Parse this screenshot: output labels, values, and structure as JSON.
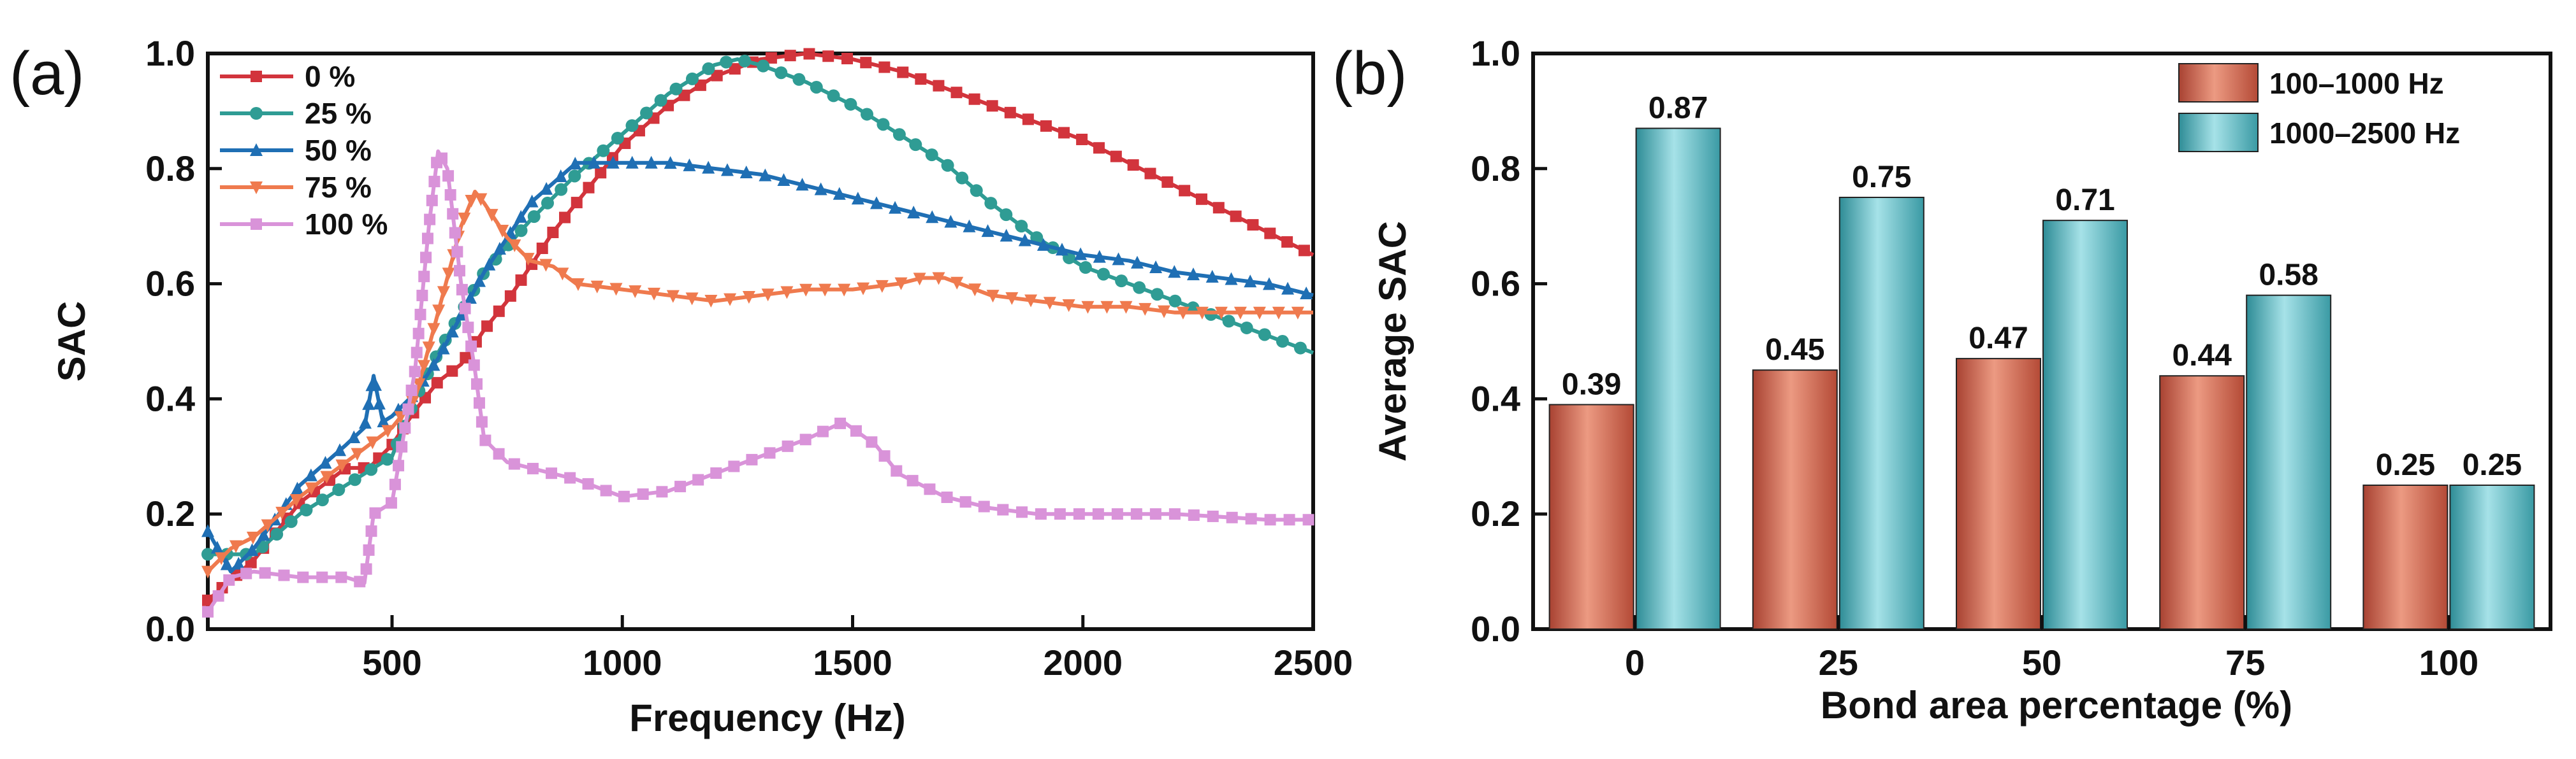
{
  "chart_data": [
    {
      "panel_label": "(a)",
      "type": "line",
      "xlabel": "Frequency (Hz)",
      "ylabel": "SAC",
      "xlim": [
        100,
        2500
      ],
      "ylim": [
        0,
        1.0
      ],
      "xticks": [
        "500",
        "1000",
        "1500",
        "2000",
        "2500"
      ],
      "yticks": [
        "0.0",
        "0.2",
        "0.4",
        "0.6",
        "0.8",
        "1.0"
      ],
      "legend_position": "top-left",
      "series": [
        {
          "name": "0 %",
          "color": "#d2343c",
          "marker": "square",
          "points": [
            [
              100,
              0.05
            ],
            [
              200,
              0.12
            ],
            [
              300,
              0.22
            ],
            [
              400,
              0.28
            ],
            [
              450,
              0.28
            ],
            [
              500,
              0.32
            ],
            [
              550,
              0.38
            ],
            [
              600,
              0.43
            ],
            [
              650,
              0.46
            ],
            [
              700,
              0.52
            ],
            [
              750,
              0.57
            ],
            [
              800,
              0.63
            ],
            [
              850,
              0.69
            ],
            [
              900,
              0.74
            ],
            [
              950,
              0.79
            ],
            [
              1000,
              0.84
            ],
            [
              1100,
              0.91
            ],
            [
              1200,
              0.96
            ],
            [
              1300,
              0.99
            ],
            [
              1400,
              1.0
            ],
            [
              1500,
              0.99
            ],
            [
              1600,
              0.97
            ],
            [
              1700,
              0.94
            ],
            [
              1800,
              0.91
            ],
            [
              1900,
              0.88
            ],
            [
              2000,
              0.85
            ],
            [
              2100,
              0.81
            ],
            [
              2200,
              0.77
            ],
            [
              2300,
              0.73
            ],
            [
              2400,
              0.69
            ],
            [
              2500,
              0.65
            ]
          ]
        },
        {
          "name": "25 %",
          "color": "#2f9c94",
          "marker": "circle",
          "points": [
            [
              100,
              0.13
            ],
            [
              200,
              0.13
            ],
            [
              300,
              0.2
            ],
            [
              400,
              0.25
            ],
            [
              500,
              0.3
            ],
            [
              550,
              0.4
            ],
            [
              600,
              0.48
            ],
            [
              700,
              0.62
            ],
            [
              800,
              0.71
            ],
            [
              900,
              0.79
            ],
            [
              1000,
              0.86
            ],
            [
              1100,
              0.93
            ],
            [
              1200,
              0.98
            ],
            [
              1250,
              0.99
            ],
            [
              1300,
              0.98
            ],
            [
              1400,
              0.95
            ],
            [
              1500,
              0.91
            ],
            [
              1600,
              0.86
            ],
            [
              1700,
              0.81
            ],
            [
              1800,
              0.74
            ],
            [
              1900,
              0.68
            ],
            [
              2000,
              0.63
            ],
            [
              2100,
              0.6
            ],
            [
              2200,
              0.57
            ],
            [
              2300,
              0.54
            ],
            [
              2400,
              0.51
            ],
            [
              2500,
              0.48
            ]
          ]
        },
        {
          "name": "50 %",
          "color": "#1f6fb4",
          "marker": "triangle-up",
          "points": [
            [
              100,
              0.17
            ],
            [
              150,
              0.1
            ],
            [
              200,
              0.14
            ],
            [
              300,
              0.25
            ],
            [
              400,
              0.32
            ],
            [
              440,
              0.35
            ],
            [
              460,
              0.44
            ],
            [
              480,
              0.36
            ],
            [
              500,
              0.37
            ],
            [
              550,
              0.41
            ],
            [
              600,
              0.47
            ],
            [
              700,
              0.62
            ],
            [
              800,
              0.74
            ],
            [
              900,
              0.81
            ],
            [
              1000,
              0.81
            ],
            [
              1100,
              0.81
            ],
            [
              1200,
              0.8
            ],
            [
              1300,
              0.79
            ],
            [
              1400,
              0.77
            ],
            [
              1500,
              0.75
            ],
            [
              1600,
              0.73
            ],
            [
              1700,
              0.71
            ],
            [
              1800,
              0.69
            ],
            [
              1900,
              0.67
            ],
            [
              2000,
              0.65
            ],
            [
              2100,
              0.64
            ],
            [
              2200,
              0.62
            ],
            [
              2300,
              0.61
            ],
            [
              2400,
              0.6
            ],
            [
              2500,
              0.58
            ]
          ]
        },
        {
          "name": "75 %",
          "color": "#ef7a4e",
          "marker": "triangle-down",
          "points": [
            [
              100,
              0.1
            ],
            [
              150,
              0.14
            ],
            [
              200,
              0.16
            ],
            [
              300,
              0.23
            ],
            [
              400,
              0.29
            ],
            [
              500,
              0.35
            ],
            [
              550,
              0.4
            ],
            [
              600,
              0.55
            ],
            [
              650,
              0.7
            ],
            [
              680,
              0.76
            ],
            [
              700,
              0.74
            ],
            [
              750,
              0.68
            ],
            [
              800,
              0.64
            ],
            [
              850,
              0.63
            ],
            [
              900,
              0.6
            ],
            [
              1000,
              0.59
            ],
            [
              1100,
              0.58
            ],
            [
              1200,
              0.57
            ],
            [
              1300,
              0.58
            ],
            [
              1400,
              0.59
            ],
            [
              1500,
              0.59
            ],
            [
              1600,
              0.6
            ],
            [
              1650,
              0.61
            ],
            [
              1700,
              0.61
            ],
            [
              1800,
              0.58
            ],
            [
              1900,
              0.57
            ],
            [
              2000,
              0.56
            ],
            [
              2100,
              0.56
            ],
            [
              2200,
              0.55
            ],
            [
              2300,
              0.55
            ],
            [
              2400,
              0.55
            ],
            [
              2500,
              0.55
            ]
          ]
        },
        {
          "name": "100 %",
          "color": "#d993d9",
          "marker": "square",
          "points": [
            [
              100,
              0.03
            ],
            [
              150,
              0.09
            ],
            [
              200,
              0.1
            ],
            [
              300,
              0.09
            ],
            [
              400,
              0.09
            ],
            [
              440,
              0.08
            ],
            [
              460,
              0.2
            ],
            [
              500,
              0.22
            ],
            [
              550,
              0.45
            ],
            [
              580,
              0.7
            ],
            [
              600,
              0.83
            ],
            [
              620,
              0.8
            ],
            [
              650,
              0.6
            ],
            [
              680,
              0.45
            ],
            [
              700,
              0.33
            ],
            [
              750,
              0.29
            ],
            [
              800,
              0.28
            ],
            [
              900,
              0.26
            ],
            [
              1000,
              0.23
            ],
            [
              1100,
              0.24
            ],
            [
              1200,
              0.27
            ],
            [
              1300,
              0.3
            ],
            [
              1400,
              0.33
            ],
            [
              1480,
              0.36
            ],
            [
              1550,
              0.32
            ],
            [
              1600,
              0.27
            ],
            [
              1700,
              0.23
            ],
            [
              1800,
              0.21
            ],
            [
              1900,
              0.2
            ],
            [
              2000,
              0.2
            ],
            [
              2200,
              0.2
            ],
            [
              2400,
              0.19
            ],
            [
              2500,
              0.19
            ]
          ]
        }
      ]
    },
    {
      "panel_label": "(b)",
      "type": "bar",
      "xlabel": "Bond area percentage (%)",
      "ylabel": "Average SAC",
      "categories": [
        "0",
        "25",
        "50",
        "75",
        "100"
      ],
      "ylim": [
        0,
        1.0
      ],
      "yticks": [
        "0.0",
        "0.2",
        "0.4",
        "0.6",
        "0.8",
        "1.0"
      ],
      "legend_position": "top-right",
      "series": [
        {
          "name": "100–1000 Hz",
          "color": "#cf6a52",
          "values": [
            0.39,
            0.45,
            0.47,
            0.44,
            0.25
          ],
          "labels": [
            "0.39",
            "0.45",
            "0.47",
            "0.44",
            "0.25"
          ]
        },
        {
          "name": "1000–2500 Hz",
          "color": "#5fbcc7",
          "values": [
            0.87,
            0.75,
            0.71,
            0.58,
            0.25
          ],
          "labels": [
            "0.87",
            "0.75",
            "0.71",
            "0.58",
            "0.25"
          ]
        }
      ]
    }
  ]
}
